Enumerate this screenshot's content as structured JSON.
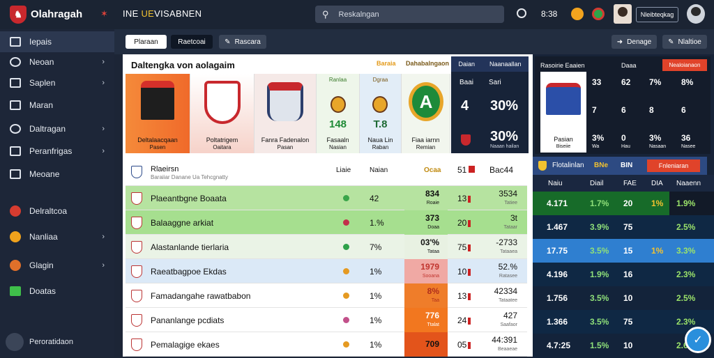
{
  "topbar": {
    "brand": "Olahragah",
    "ticker_a": "INE ",
    "ticker_b": "UE",
    "ticker_c": "VISABNEN",
    "search_placeholder": "Reskalngan",
    "time": "8:38",
    "user_label": "Nleibteqkag"
  },
  "sidebar": {
    "items": [
      {
        "label": "Iepais",
        "icon": "grid-icon"
      },
      {
        "label": "Neoan",
        "icon": "tag-icon"
      },
      {
        "label": "Saplen",
        "icon": "home-icon"
      },
      {
        "label": "Maran",
        "icon": "list-icon"
      },
      {
        "label": "Daltragan",
        "icon": "globe-icon"
      },
      {
        "label": "Peranfrigas",
        "icon": "chart-icon"
      },
      {
        "label": "Meoane",
        "icon": "layout-icon"
      },
      {
        "label": "Delraltcoa",
        "icon": "red-dot-icon"
      },
      {
        "label": "Nanliaa",
        "icon": "orange-dot-icon"
      },
      {
        "label": "Glagin",
        "icon": "ball-icon"
      },
      {
        "label": "Doatas",
        "icon": "green-square-icon"
      }
    ],
    "footer": "Peroratidaon"
  },
  "subbar": {
    "tab1": "Plaraan",
    "tab2": "Raetcoai",
    "tab3": "Rascara",
    "right1": "Denage",
    "right2": "Nlaltioe"
  },
  "featured": {
    "title": "Daltengka von aolagaim",
    "tag1": "Baraia",
    "tag2": "Dahabalngaon",
    "cards": [
      {
        "cap": "Deltalaacqaan",
        "sub": "Pasen"
      },
      {
        "cap": "Poltatrigem",
        "sub": "Oaitara"
      },
      {
        "cap": "Fanra Fadenalon",
        "sub": "Pasan"
      },
      {
        "top": "Ranlaa",
        "num": "148",
        "cap": "Fasaaln",
        "sub": "Nasian"
      },
      {
        "top": "Dgraa",
        "num": "T.8",
        "cap": "Naua Lin",
        "sub": "Raban"
      },
      {
        "cap": "Fiaa iarnn",
        "sub": "Remian"
      }
    ]
  },
  "featpanel": {
    "h1": "Daian",
    "h2": "Naanaallan",
    "c1": "Baai",
    "c2": "Sari",
    "big1": "4",
    "big2": "30%",
    "big3": "30%",
    "foot": "Naaan hailan"
  },
  "table": {
    "header": {
      "name": "Rlaeirsn",
      "sub": "Baraiiar Danane Ua Tehcgnatty",
      "c1": "Liaie",
      "c2": "Naian",
      "c3": "Ocaa",
      "c4": "51",
      "c5": "Bac44"
    },
    "rows": [
      {
        "name": "Plaeantbgne Boaata",
        "v1": "42",
        "v2": "834",
        "v2b": "Roaie",
        "v3": "13",
        "v4": "3534",
        "v4b": "Tatiee",
        "bg": "#b6e3a0",
        "dot": "#3aa54a",
        "v2bg": "#b6e3a0",
        "v2color": "#111"
      },
      {
        "name": "Balaaggne arkiat",
        "v1": "1.%",
        "v2": "373",
        "v2b": "Doaa",
        "v3": "20",
        "v4": "3t",
        "v4b": "Tataar",
        "bg": "#a6df8f",
        "dot": "#c2304b",
        "v2bg": "#a6df8f",
        "v2color": "#111"
      },
      {
        "name": "Alastanlande tierlaria",
        "v1": "7%",
        "v2": "03'%",
        "v2b": "Tataa",
        "v3": "75",
        "v4": "-2733",
        "v4b": "Tataaea",
        "bg": "#eaf3e6",
        "dot": "#2ea14a",
        "v2bg": "#e8f1e2",
        "v2color": "#111"
      },
      {
        "name": "Raeatbagpoe Ekdas",
        "v1": "1%",
        "v2": "1979",
        "v2b": "Sooana",
        "v3": "10",
        "v4": "52.%",
        "v4b": "Ratasee",
        "bg": "#dbe9f7",
        "dot": "#e59a22",
        "v2bg": "#f0a9a4",
        "v2color": "#c0342e"
      },
      {
        "name": "Famadangahe rawatbabon",
        "v1": "1%",
        "v2": "8%",
        "v2b": "Taa",
        "v3": "13",
        "v4": "42334",
        "v4b": "Tataatee",
        "bg": "#ffffff",
        "dot": "#e59a22",
        "v2bg": "#ef7d2a",
        "v2color": "#b02e1c"
      },
      {
        "name": "Pananlange pcdiats",
        "v1": "1%",
        "v2": "776",
        "v2b": "Ttalat",
        "v3": "24",
        "v4": "427",
        "v4b": "Saafaor",
        "bg": "#ffffff",
        "dot": "#c2508a",
        "v2bg": "#f2771f",
        "v2color": "#fff"
      },
      {
        "name": "Pemalagige ekaes",
        "v1": "1%",
        "v2": "709",
        "v2b": "",
        "v3": "05",
        "v4": "44:391",
        "v4b": "Beaaeae",
        "bg": "#ffffff",
        "dot": "#e59a22",
        "v2bg": "#e3541b",
        "v2color": "#111"
      }
    ]
  },
  "rtop": {
    "h1": "Rasoirie Eaaien",
    "h2": "Daaa",
    "h3": "Nealoianaon",
    "cap": "Pasian",
    "cap2": "Biseiie",
    "grid": [
      [
        "33",
        "62",
        "7%",
        "8%"
      ],
      [
        "7",
        "6",
        "8",
        "6"
      ],
      [
        "3%",
        "0",
        "3%",
        "36"
      ]
    ],
    "grid_sub": [
      "Wa",
      "Hau",
      "Nasaan",
      "Nasee"
    ]
  },
  "rsec": {
    "title": "Flotalinlan",
    "a": "BNe",
    "b": "BIN",
    "btn": "Fnleniaran"
  },
  "rhead": {
    "c1": "Naiu",
    "c2": "Diail",
    "c3": "FAE",
    "c4": "DIA",
    "c5": "Naaenn"
  },
  "rrows": [
    {
      "a": "4.171",
      "b": "1.7%",
      "c": "20",
      "d": "1%",
      "e": "1.9%",
      "bg": "#176b29",
      "ebg": "#121a28"
    },
    {
      "a": "1.467",
      "b": "3.9%",
      "c": "75",
      "d": "",
      "e": "2.5%",
      "bg": "#0f2844",
      "ebg": "#0f2844"
    },
    {
      "a": "17.75",
      "b": "3.5%",
      "c": "15",
      "d": "1%",
      "e": "3.3%",
      "bg": "#2f7fd0",
      "ebg": "#2f7fd0"
    },
    {
      "a": "4.196",
      "b": "1.9%",
      "c": "16",
      "d": "",
      "e": "2.3%",
      "bg": "#0f2844",
      "ebg": "#0f2844"
    },
    {
      "a": "1.756",
      "b": "3.5%",
      "c": "10",
      "d": "",
      "e": "2.5%",
      "bg": "#13233a",
      "ebg": "#13233a"
    },
    {
      "a": "1.366",
      "b": "3.5%",
      "c": "75",
      "d": "",
      "e": "2.3%",
      "bg": "#0f2844",
      "ebg": "#0f2844"
    },
    {
      "a": "4.7:25",
      "b": "1.5%",
      "c": "10",
      "d": "",
      "e": "2.6%",
      "bg": "#13233a",
      "ebg": "#13233a"
    }
  ]
}
